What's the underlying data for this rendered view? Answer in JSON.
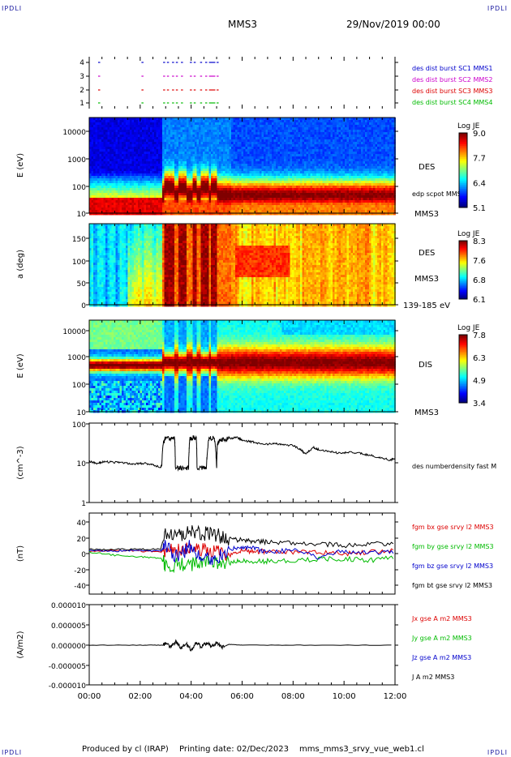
{
  "corner_label": "IPDLI",
  "header": {
    "spacecraft": "MMS3",
    "datetime": "29/Nov/2019 00:00"
  },
  "footer": {
    "produced_by": "Produced by cl (IRAP)",
    "printing_date": "Printing date: 02/Dec/2023",
    "filename": "mms_mms3_srvy_vue_web1.cl"
  },
  "time_axis": {
    "range_hours": [
      0,
      12
    ],
    "tick_labels": [
      "00:00",
      "02:00",
      "04:00",
      "06:00",
      "08:00",
      "10:00",
      "12:00"
    ]
  },
  "chart_data": [
    {
      "type": "scatter",
      "id": "burst",
      "y_ticks": [
        "4",
        "3",
        "2",
        "1"
      ],
      "legend": [
        {
          "label": "des dist burst SC1 MMS1",
          "color": "#0000cc",
          "level": 4
        },
        {
          "label": "des dist burst SC2 MMS2",
          "color": "#cc00cc",
          "level": 3
        },
        {
          "label": "des dist burst SC3 MMS3",
          "color": "#dd0000",
          "level": 2
        },
        {
          "label": "des dist burst SC4 MMS4",
          "color": "#00bb00",
          "level": 1
        }
      ],
      "burst_times_h": [
        0.35,
        2.05,
        2.9,
        3.05,
        3.25,
        3.4,
        3.6,
        3.95,
        4.1,
        4.35,
        4.55,
        5.0
      ]
    },
    {
      "type": "heatmap",
      "id": "des-energy",
      "ylabel": "E (eV)",
      "y_tick_labels": [
        "10000",
        "1000",
        "100",
        "10"
      ],
      "right_labels": [
        "DES",
        "edp scpot MMS3",
        "MMS3"
      ],
      "colorbar": {
        "title": "Log JE",
        "ticks": [
          "9.0",
          "7.7",
          "6.4",
          "5.1"
        ]
      }
    },
    {
      "type": "heatmap",
      "id": "des-pitch",
      "ylabel": "a (deg)",
      "y_tick_labels": [
        "150",
        "100",
        "50",
        "0"
      ],
      "right_labels": [
        "DES",
        "MMS3",
        "139-185 eV"
      ],
      "colorbar": {
        "title": "Log JE",
        "ticks": [
          "8.3",
          "7.6",
          "6.8",
          "6.1"
        ]
      }
    },
    {
      "type": "heatmap",
      "id": "dis-energy",
      "ylabel": "E (eV)",
      "y_tick_labels": [
        "10000",
        "1000",
        "100",
        "10"
      ],
      "right_labels": [
        "DIS",
        "MMS3"
      ],
      "colorbar": {
        "title": "Log JE",
        "ticks": [
          "7.8",
          "6.3",
          "4.9",
          "3.4"
        ]
      }
    },
    {
      "type": "line",
      "id": "density",
      "ylabel": "(cm^-3)",
      "y_tick_labels": [
        "100",
        "10",
        "1"
      ],
      "legend": [
        {
          "label": "des numberdensity fast M",
          "color": "#000000"
        }
      ],
      "series": [
        {
          "color": "#000000",
          "x": [
            0,
            0.3,
            0.6,
            1.0,
            1.4,
            1.8,
            2.2,
            2.5,
            2.8,
            2.85,
            2.9,
            3.0,
            3.2,
            3.35,
            3.38,
            3.6,
            3.9,
            3.95,
            4.1,
            4.2,
            4.23,
            4.5,
            4.6,
            4.7,
            4.9,
            5.0,
            5.03,
            5.1,
            5.2,
            5.5,
            5.8,
            6.0,
            6.4,
            6.8,
            7.2,
            7.5,
            8.0,
            8.3,
            8.5,
            8.8,
            9.0,
            9.4,
            9.8,
            10.2,
            10.6,
            11.0,
            11.4,
            11.8,
            12.0
          ],
          "y": [
            11,
            10,
            11,
            10.5,
            10,
            9.5,
            10,
            9,
            8,
            9,
            30,
            45,
            40,
            45,
            7.5,
            7.5,
            7.5,
            42,
            45,
            45,
            7.5,
            7.5,
            7.5,
            42,
            45,
            7,
            30,
            38,
            40,
            42,
            45,
            38,
            35,
            30,
            32,
            30,
            28,
            22,
            17,
            25,
            22,
            20,
            18,
            19,
            18,
            16,
            14,
            12,
            13
          ]
        }
      ]
    },
    {
      "type": "line",
      "id": "fgm",
      "ylabel": "(nT)",
      "y_tick_labels": [
        "40",
        "20",
        "0",
        "-20",
        "-40"
      ],
      "ylim": [
        -50,
        50
      ],
      "legend": [
        {
          "label": "fgm bx gse srvy l2 MMS3",
          "color": "#dd0000"
        },
        {
          "label": "fgm by gse srvy l2 MMS3",
          "color": "#00bb00"
        },
        {
          "label": "fgm bz gse srvy l2 MMS3",
          "color": "#0000cc"
        },
        {
          "label": "fgm bt gse srvy l2 MMS3",
          "color": "#000000"
        }
      ],
      "series": [
        {
          "color": "#dd0000",
          "x": [
            0,
            1,
            2,
            2.8,
            3.0,
            3.5,
            4.0,
            4.5,
            5.0,
            5.5,
            6.0,
            6.5,
            7.0,
            8.0,
            9.0,
            10.0,
            11.0,
            12.0
          ],
          "y": [
            3,
            4,
            3,
            2,
            5,
            3,
            6,
            4,
            5,
            -2,
            4,
            2,
            3,
            1,
            2,
            0,
            2,
            3
          ]
        },
        {
          "color": "#00bb00",
          "x": [
            0,
            1,
            2,
            2.8,
            3.0,
            3.5,
            4.0,
            4.5,
            5.0,
            5.5,
            6.0,
            6.5,
            7.0,
            8.0,
            9.0,
            10.0,
            11.0,
            12.0
          ],
          "y": [
            2,
            -2,
            -4,
            -5,
            -15,
            -12,
            -14,
            -10,
            -10,
            -12,
            -8,
            -10,
            -9,
            -8,
            -7,
            -6,
            -8,
            -5
          ]
        },
        {
          "color": "#0000cc",
          "x": [
            0,
            1,
            2,
            2.8,
            3.0,
            3.5,
            4.0,
            4.5,
            5.0,
            5.5,
            6.0,
            6.5,
            7.0,
            8.0,
            9.0,
            10.0,
            11.0,
            12.0
          ],
          "y": [
            4,
            3,
            4,
            3,
            8,
            -5,
            10,
            -6,
            -5,
            5,
            7,
            6,
            2,
            4,
            -4,
            3,
            1,
            2
          ]
        },
        {
          "color": "#000000",
          "x": [
            0,
            1,
            2,
            2.8,
            3.0,
            3.5,
            4.0,
            4.5,
            5.0,
            5.5,
            6.0,
            6.5,
            7.0,
            8.0,
            9.0,
            10.0,
            11.0,
            12.0
          ],
          "y": [
            5,
            5,
            5,
            6,
            25,
            22,
            26,
            24,
            22,
            18,
            16,
            15,
            14,
            13,
            12,
            10,
            11,
            12
          ]
        }
      ]
    },
    {
      "type": "line",
      "id": "current",
      "ylabel": "(A/m2)",
      "y_tick_labels": [
        "0.000010",
        "0.000005",
        "0.000000",
        "-0.000005",
        "-0.000010"
      ],
      "ylim": [
        -1e-05,
        1e-05
      ],
      "legend": [
        {
          "label": "Jx gse A m2 MMS3",
          "color": "#dd0000"
        },
        {
          "label": "Jy gse A m2 MMS3",
          "color": "#00bb00"
        },
        {
          "label": "Jz gse A m2 MMS3",
          "color": "#0000cc"
        },
        {
          "label": "J A m2 MMS3",
          "color": "#000000"
        }
      ],
      "series": [
        {
          "color": "#000000",
          "x": [
            0,
            2,
            2.9,
            3.0,
            3.2,
            3.4,
            3.6,
            3.8,
            4.0,
            4.2,
            4.4,
            4.6,
            4.8,
            5.0,
            5.2,
            5.5,
            6.0,
            8.0,
            10.0,
            12.0
          ],
          "y": [
            0,
            0,
            0,
            5e-07,
            -5e-07,
            8e-07,
            -6e-07,
            4e-07,
            -1.2e-06,
            6e-07,
            -4e-07,
            5e-07,
            -3e-07,
            6e-07,
            -5e-07,
            2e-07,
            0,
            0,
            0,
            0
          ]
        }
      ]
    }
  ]
}
